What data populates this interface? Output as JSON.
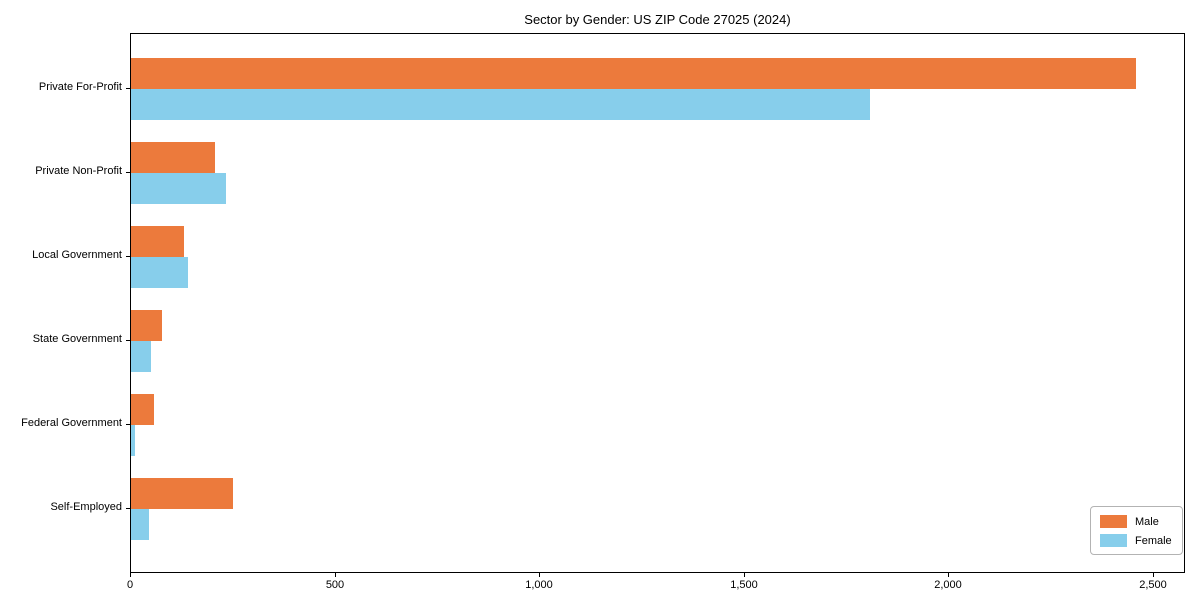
{
  "chart_data": {
    "type": "bar",
    "orientation": "horizontal",
    "title": "Sector by Gender: US ZIP Code 27025 (2024)",
    "categories": [
      "Private For-Profit",
      "Private Non-Profit",
      "Local Government",
      "State Government",
      "Federal Government",
      "Self-Employed"
    ],
    "series": [
      {
        "name": "Male",
        "color": "#EC7A3C",
        "values": [
          2455,
          205,
          130,
          75,
          55,
          250
        ]
      },
      {
        "name": "Female",
        "color": "#87CEEB",
        "values": [
          1805,
          233,
          139,
          48,
          10,
          44
        ]
      }
    ],
    "xlim": [
      0,
      2578
    ],
    "x_ticks": [
      0,
      500,
      1000,
      1500,
      2000,
      2500
    ],
    "x_tick_labels": [
      "0",
      "500",
      "1,000",
      "1,500",
      "2,000",
      "2,500"
    ],
    "xlabel": "",
    "ylabel": "",
    "grid": false,
    "legend": {
      "position": "lower right",
      "entries": [
        {
          "label": "Male",
          "color": "#EC7A3C"
        },
        {
          "label": "Female",
          "color": "#87CEEB"
        }
      ]
    }
  }
}
